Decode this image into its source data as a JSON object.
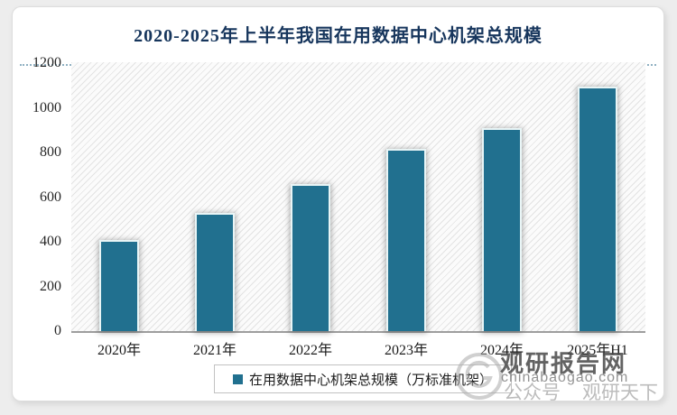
{
  "chart_data": {
    "type": "bar",
    "title": "2020-2025年上半年我国在用数据中心机架总规模",
    "categories": [
      "2020年",
      "2021年",
      "2022年",
      "2023年",
      "2024年",
      "2025年H1"
    ],
    "values": [
      400,
      520,
      650,
      810,
      900,
      1085
    ],
    "series_name": "在用数据中心机架总规模（万标准机架）",
    "xlabel": "",
    "ylabel": "",
    "ylim": [
      0,
      1200
    ],
    "y_ticks": [
      0,
      200,
      400,
      600,
      800,
      1000,
      1200
    ],
    "grid": false,
    "legend_position": "bottom",
    "bar_color": "#21708F",
    "title_color": "#17365D",
    "plot_background": "light-diagonal-hatch"
  },
  "legend": {
    "label": "在用数据中心机架总规模（万标准机架）",
    "marker_color": "#21708F"
  },
  "watermark": {
    "brand": "观研报告网",
    "url": "chinabaogao.com",
    "account_prefix": "公众号",
    "account_name": "观研天下"
  }
}
